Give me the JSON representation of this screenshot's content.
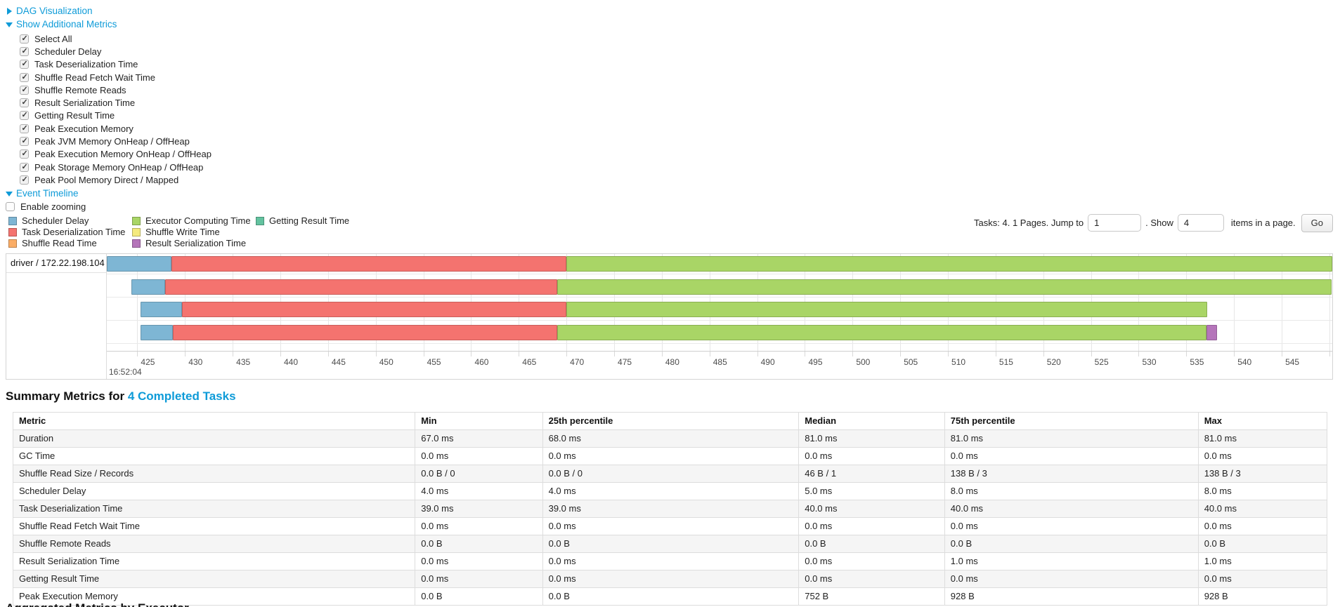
{
  "toggles": {
    "dag": {
      "label": "DAG Visualization"
    },
    "metrics": {
      "label": "Show Additional Metrics"
    },
    "timeline": {
      "label": "Event Timeline"
    }
  },
  "additional_metrics": {
    "items": [
      {
        "label": "Select All",
        "checked": true
      },
      {
        "label": "Scheduler Delay",
        "checked": true
      },
      {
        "label": "Task Deserialization Time",
        "checked": true
      },
      {
        "label": "Shuffle Read Fetch Wait Time",
        "checked": true
      },
      {
        "label": "Shuffle Remote Reads",
        "checked": true
      },
      {
        "label": "Result Serialization Time",
        "checked": true
      },
      {
        "label": "Getting Result Time",
        "checked": true
      },
      {
        "label": "Peak Execution Memory",
        "checked": true
      },
      {
        "label": "Peak JVM Memory OnHeap / OffHeap",
        "checked": true
      },
      {
        "label": "Peak Execution Memory OnHeap / OffHeap",
        "checked": true
      },
      {
        "label": "Peak Storage Memory OnHeap / OffHeap",
        "checked": true
      },
      {
        "label": "Peak Pool Memory Direct / Mapped",
        "checked": true
      }
    ]
  },
  "enable_zooming": {
    "label": "Enable zooming",
    "checked": false
  },
  "legend": {
    "columns": [
      [
        {
          "label": "Scheduler Delay",
          "color": "#7eb6d4"
        },
        {
          "label": "Task Deserialization Time",
          "color": "#f4736f"
        },
        {
          "label": "Shuffle Read Time",
          "color": "#fbad66"
        }
      ],
      [
        {
          "label": "Executor Computing Time",
          "color": "#a9d566"
        },
        {
          "label": "Shuffle Write Time",
          "color": "#f4ea7e"
        },
        {
          "label": "Result Serialization Time",
          "color": "#b575ba"
        }
      ],
      [
        {
          "label": "Getting Result Time",
          "color": "#63c29f"
        }
      ]
    ]
  },
  "pagination": {
    "prefix": "Tasks: 4. 1 Pages. Jump to",
    "jump_value": "1",
    "mid": ". Show",
    "show_value": "4",
    "suffix": "items in a page.",
    "go_label": "Go"
  },
  "chart_data": {
    "type": "timeline",
    "group_label": "driver / 172.22.198.104",
    "axis": {
      "min": 421.8,
      "max": 550.3,
      "tick_start": 425,
      "tick_end": 550,
      "tick_step": 5,
      "major_label": "16:52:04"
    },
    "segment_colors": {
      "scheduler_delay": "#7eb6d4",
      "task_deserialization": "#f4736f",
      "shuffle_read": "#fbad66",
      "executor_computing": "#a9d566",
      "shuffle_write": "#f4ea7e",
      "result_serialization": "#b575ba",
      "getting_result": "#63c29f"
    },
    "tasks": [
      {
        "segments": [
          {
            "type": "scheduler_delay",
            "start": 421.8,
            "end": 428.6
          },
          {
            "type": "task_deserialization",
            "start": 428.6,
            "end": 470.0
          },
          {
            "type": "executor_computing",
            "start": 470.0,
            "end": 550.3
          }
        ]
      },
      {
        "segments": [
          {
            "type": "scheduler_delay",
            "start": 424.4,
            "end": 427.9
          },
          {
            "type": "task_deserialization",
            "start": 427.9,
            "end": 469.0
          },
          {
            "type": "executor_computing",
            "start": 469.0,
            "end": 550.2
          }
        ]
      },
      {
        "segments": [
          {
            "type": "scheduler_delay",
            "start": 425.3,
            "end": 429.7
          },
          {
            "type": "task_deserialization",
            "start": 429.7,
            "end": 470.0
          },
          {
            "type": "executor_computing",
            "start": 470.0,
            "end": 537.2
          }
        ]
      },
      {
        "segments": [
          {
            "type": "scheduler_delay",
            "start": 425.3,
            "end": 428.7
          },
          {
            "type": "task_deserialization",
            "start": 428.7,
            "end": 469.0
          },
          {
            "type": "executor_computing",
            "start": 469.0,
            "end": 537.1
          },
          {
            "type": "result_serialization",
            "start": 537.1,
            "end": 538.2
          }
        ]
      }
    ]
  },
  "summary": {
    "title_prefix": "Summary Metrics for ",
    "title_link": "4 Completed Tasks",
    "columns": [
      "Metric",
      "Min",
      "25th percentile",
      "Median",
      "75th percentile",
      "Max"
    ],
    "column_widths": [
      "30.6%",
      "9.7%",
      "19.5%",
      "11.1%",
      "19.3%",
      "9.8%"
    ],
    "rows": [
      {
        "metric": "Duration",
        "values": [
          "67.0 ms",
          "68.0 ms",
          "81.0 ms",
          "81.0 ms",
          "81.0 ms"
        ]
      },
      {
        "metric": "GC Time",
        "values": [
          "0.0 ms",
          "0.0 ms",
          "0.0 ms",
          "0.0 ms",
          "0.0 ms"
        ]
      },
      {
        "metric": "Shuffle Read Size / Records",
        "values": [
          "0.0 B / 0",
          "0.0 B / 0",
          "46 B / 1",
          "138 B / 3",
          "138 B / 3"
        ]
      },
      {
        "metric": "Scheduler Delay",
        "values": [
          "4.0 ms",
          "4.0 ms",
          "5.0 ms",
          "8.0 ms",
          "8.0 ms"
        ]
      },
      {
        "metric": "Task Deserialization Time",
        "values": [
          "39.0 ms",
          "39.0 ms",
          "40.0 ms",
          "40.0 ms",
          "40.0 ms"
        ]
      },
      {
        "metric": "Shuffle Read Fetch Wait Time",
        "values": [
          "0.0 ms",
          "0.0 ms",
          "0.0 ms",
          "0.0 ms",
          "0.0 ms"
        ]
      },
      {
        "metric": "Shuffle Remote Reads",
        "values": [
          "0.0 B",
          "0.0 B",
          "0.0 B",
          "0.0 B",
          "0.0 B"
        ]
      },
      {
        "metric": "Result Serialization Time",
        "values": [
          "0.0 ms",
          "0.0 ms",
          "0.0 ms",
          "1.0 ms",
          "1.0 ms"
        ]
      },
      {
        "metric": "Getting Result Time",
        "values": [
          "0.0 ms",
          "0.0 ms",
          "0.0 ms",
          "0.0 ms",
          "0.0 ms"
        ]
      },
      {
        "metric": "Peak Execution Memory",
        "values": [
          "0.0 B",
          "0.0 B",
          "752 B",
          "928 B",
          "928 B"
        ]
      }
    ]
  },
  "next_section": {
    "label": "Aggregated Metrics by Executor"
  }
}
